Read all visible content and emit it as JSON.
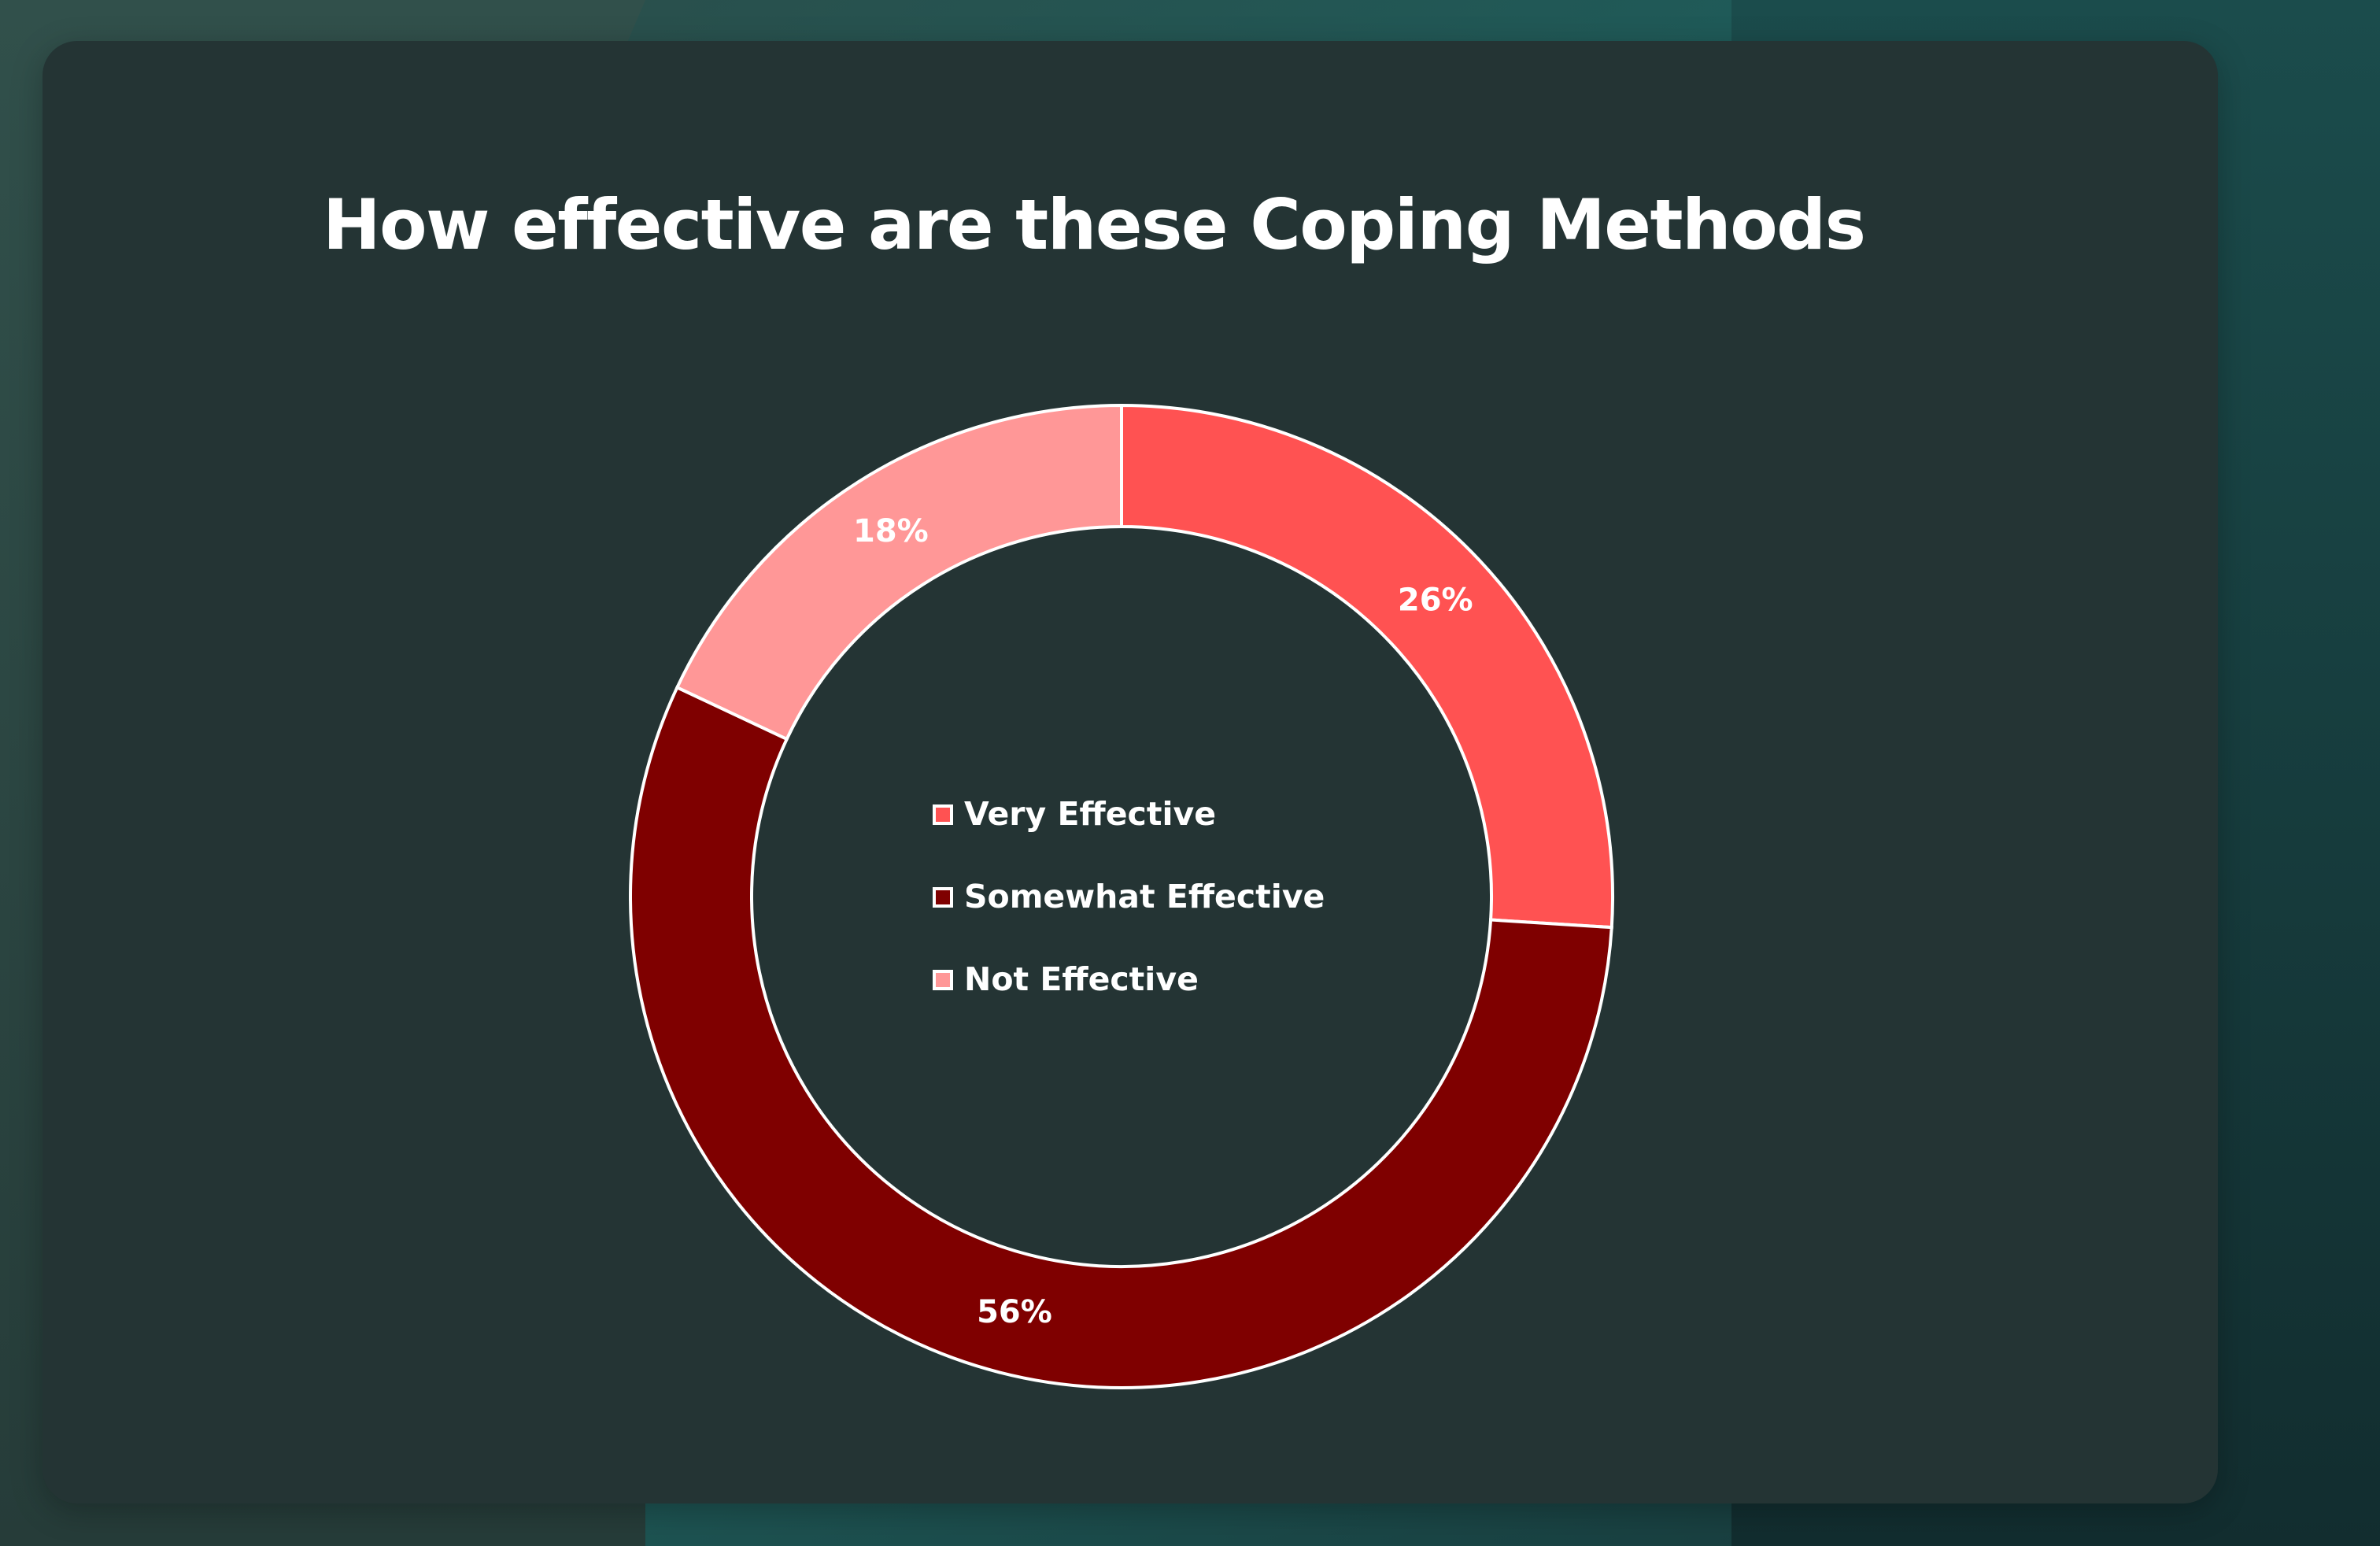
{
  "chart_data": {
    "type": "pie",
    "donut": true,
    "title": "How effective are these Coping Methods",
    "start_angle_deg": 0,
    "direction": "clockwise",
    "legend_position": "center",
    "slices": [
      {
        "label": "Very Effective",
        "value": 26,
        "display": "26%",
        "color": "#ff5252"
      },
      {
        "label": "Somewhat Effective",
        "value": 56,
        "display": "56%",
        "color": "#7f0000"
      },
      {
        "label": "Not Effective",
        "value": 18,
        "display": "18%",
        "color": "#ff9797"
      }
    ]
  },
  "colors": {
    "card_background": "#243434",
    "text": "#ffffff",
    "slice_border": "#ffffff"
  }
}
